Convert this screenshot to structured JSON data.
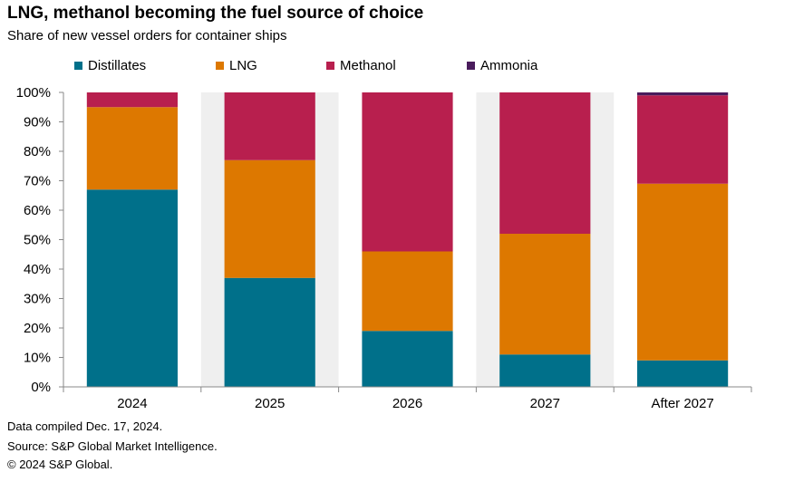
{
  "chart_data": {
    "type": "bar",
    "stacked": true,
    "title": "LNG, methanol becoming the fuel source of choice",
    "subtitle": "Share of new vessel orders for container ships",
    "categories": [
      "2024",
      "2025",
      "2026",
      "2027",
      "After 2027"
    ],
    "series": [
      {
        "name": "Distillates",
        "color": "#00708a",
        "values": [
          67,
          37,
          19,
          11,
          9
        ]
      },
      {
        "name": "LNG",
        "color": "#dd7800",
        "values": [
          28,
          40,
          27,
          41,
          60
        ]
      },
      {
        "name": "Methanol",
        "color": "#b81f4e",
        "values": [
          5,
          23,
          54,
          48,
          30
        ]
      },
      {
        "name": "Ammonia",
        "color": "#4a1c5c",
        "values": [
          0,
          0,
          0,
          0,
          1
        ]
      }
    ],
    "ylim": [
      0,
      100
    ],
    "yticks": [
      "0%",
      "10%",
      "20%",
      "30%",
      "40%",
      "50%",
      "60%",
      "70%",
      "80%",
      "90%",
      "100%"
    ],
    "legend_position": "top",
    "grid": false,
    "band_shading": true
  },
  "footer": {
    "line1": "Data compiled Dec. 17, 2024.",
    "line2": "Source: S&P Global Market Intelligence.",
    "line3": "© 2024 S&P Global."
  }
}
